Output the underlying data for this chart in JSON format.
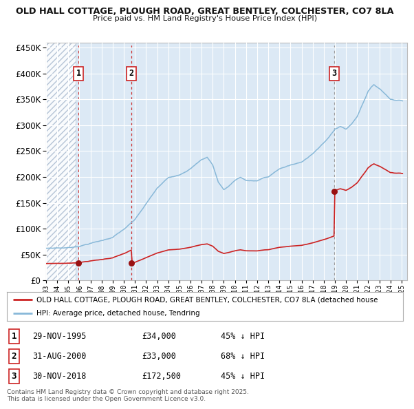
{
  "title1": "OLD HALL COTTAGE, PLOUGH ROAD, GREAT BENTLEY, COLCHESTER, CO7 8LA",
  "title2": "Price paid vs. HM Land Registry's House Price Index (HPI)",
  "background_color": "#ffffff",
  "plot_bg_color": "#dce9f5",
  "hatch_color": "#c8d8ea",
  "grid_color": "#ffffff",
  "hpi_color": "#88b8d8",
  "price_color": "#cc2222",
  "sale_marker_color": "#991111",
  "ylim": [
    0,
    460000
  ],
  "yticks": [
    0,
    50000,
    100000,
    150000,
    200000,
    250000,
    300000,
    350000,
    400000,
    450000
  ],
  "sales": [
    {
      "date": 1995.91,
      "price": 34000,
      "label": "1",
      "vline_color": "#cc3333",
      "vline_style": "dashed"
    },
    {
      "date": 2000.67,
      "price": 33000,
      "label": "2",
      "vline_color": "#cc3333",
      "vline_style": "dashed"
    },
    {
      "date": 2018.92,
      "price": 172500,
      "label": "3",
      "vline_color": "#999999",
      "vline_style": "dashed"
    }
  ],
  "legend_entries": [
    "OLD HALL COTTAGE, PLOUGH ROAD, GREAT BENTLEY, COLCHESTER, CO7 8LA (detached house",
    "HPI: Average price, detached house, Tendring"
  ],
  "table_rows": [
    {
      "num": "1",
      "date": "29-NOV-1995",
      "price": "£34,000",
      "note": "45% ↓ HPI"
    },
    {
      "num": "2",
      "date": "31-AUG-2000",
      "price": "£33,000",
      "note": "68% ↓ HPI"
    },
    {
      "num": "3",
      "date": "30-NOV-2018",
      "price": "£172,500",
      "note": "45% ↓ HPI"
    }
  ],
  "footnote": "Contains HM Land Registry data © Crown copyright and database right 2025.\nThis data is licensed under the Open Government Licence v3.0.",
  "xmin": 1993.0,
  "xmax": 2025.5,
  "hatch_xmax": 1995.67
}
